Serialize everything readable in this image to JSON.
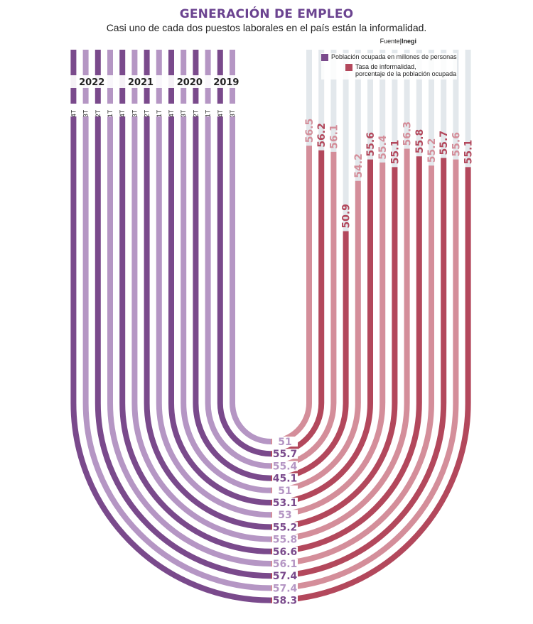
{
  "header": {
    "title": "GENERACIÓN DE EMPLEO",
    "subtitle": "Casi uno de cada dos puestos laborales en el país están la informalidad.",
    "source_label": "Fuente|",
    "source_name": "Inegi"
  },
  "legend": {
    "employed_label": "Población ocupada en millones de personas",
    "informality_label_line1": "Tasa de informalidad,",
    "informality_label_line2": "porcentaje de la población ocupada"
  },
  "colors": {
    "employed_dark": "#7a4a8c",
    "employed_light": "#b596c4",
    "informality_dark": "#b3485c",
    "informality_light": "#d48e9a",
    "track": "#e3e8ec"
  },
  "chart_data": {
    "type": "radial-bar",
    "title": "GENERACIÓN DE EMPLEO",
    "series": [
      {
        "name": "Población ocupada en millones de personas",
        "unit": "millones de personas"
      },
      {
        "name": "Tasa de informalidad, porcentaje de la población ocupada",
        "unit": "%"
      }
    ],
    "periods": [
      {
        "year": "2022",
        "quarter": "4T",
        "employed": 58.3,
        "informality": 55.1
      },
      {
        "year": "2022",
        "quarter": "3T",
        "employed": 57.4,
        "informality": 55.6
      },
      {
        "year": "2022",
        "quarter": "2T",
        "employed": 57.4,
        "informality": 55.7
      },
      {
        "year": "2022",
        "quarter": "1T",
        "employed": 56.1,
        "informality": 55.2
      },
      {
        "year": "2021",
        "quarter": "4T",
        "employed": 56.6,
        "informality": 55.8
      },
      {
        "year": "2021",
        "quarter": "3T",
        "employed": 55.8,
        "informality": 56.3
      },
      {
        "year": "2021",
        "quarter": "2T",
        "employed": 55.2,
        "informality": 55.1
      },
      {
        "year": "2021",
        "quarter": "1T",
        "employed": 53,
        "informality": 55.4
      },
      {
        "year": "2020",
        "quarter": "4T",
        "employed": 53.1,
        "informality": 55.6
      },
      {
        "year": "2020",
        "quarter": "3T",
        "employed": 51,
        "informality": 54.2
      },
      {
        "year": "2020",
        "quarter": "2T",
        "employed": 45.1,
        "informality": 50.9
      },
      {
        "year": "2020",
        "quarter": "1T",
        "employed": 55.4,
        "informality": 56.1
      },
      {
        "year": "2019",
        "quarter": "4T",
        "employed": 55.7,
        "informality": 56.2
      },
      {
        "year": "2019",
        "quarter": "3T",
        "employed": 51,
        "informality": 56.5
      }
    ],
    "years": [
      "2022",
      "2021",
      "2020",
      "2019"
    ]
  }
}
